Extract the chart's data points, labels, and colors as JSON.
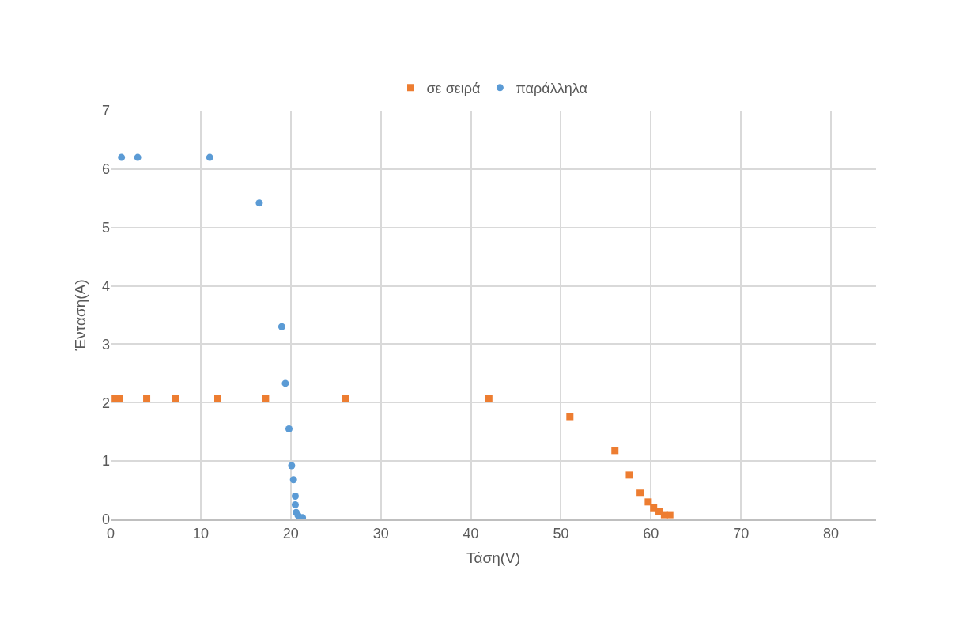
{
  "chart_data": {
    "type": "scatter",
    "xlabel": "Τάση(V)",
    "ylabel": "Ένταση(A)",
    "xlim": [
      0,
      85
    ],
    "xticks": [
      0,
      10,
      20,
      30,
      40,
      50,
      60,
      70,
      80
    ],
    "ylim": [
      0,
      7
    ],
    "yticks": [
      0,
      1,
      2,
      3,
      4,
      5,
      6,
      7
    ],
    "grid": true,
    "legend": "top",
    "series": [
      {
        "name": "σε σειρά",
        "color": "#ed7d31",
        "marker": "square",
        "x": [
          0.5,
          1,
          4,
          7.2,
          11.9,
          17.2,
          26.1,
          42,
          51,
          56,
          57.6,
          58.8,
          59.7,
          60.3,
          60.9,
          61.5,
          62.1
        ],
        "values": [
          2.07,
          2.07,
          2.07,
          2.07,
          2.07,
          2.07,
          2.07,
          2.07,
          1.76,
          1.18,
          0.76,
          0.45,
          0.3,
          0.2,
          0.13,
          0.08,
          0.08
        ]
      },
      {
        "name": "παράλληλα",
        "color": "#5b9bd5",
        "marker": "circle",
        "x": [
          1.2,
          3,
          11,
          16.5,
          19,
          19.4,
          19.8,
          20.1,
          20.3,
          20.5,
          20.5,
          20.6,
          20.8,
          21.3
        ],
        "values": [
          6.2,
          6.2,
          6.2,
          5.42,
          3.3,
          2.33,
          1.55,
          0.92,
          0.68,
          0.4,
          0.25,
          0.12,
          0.07,
          0.03
        ]
      }
    ]
  }
}
